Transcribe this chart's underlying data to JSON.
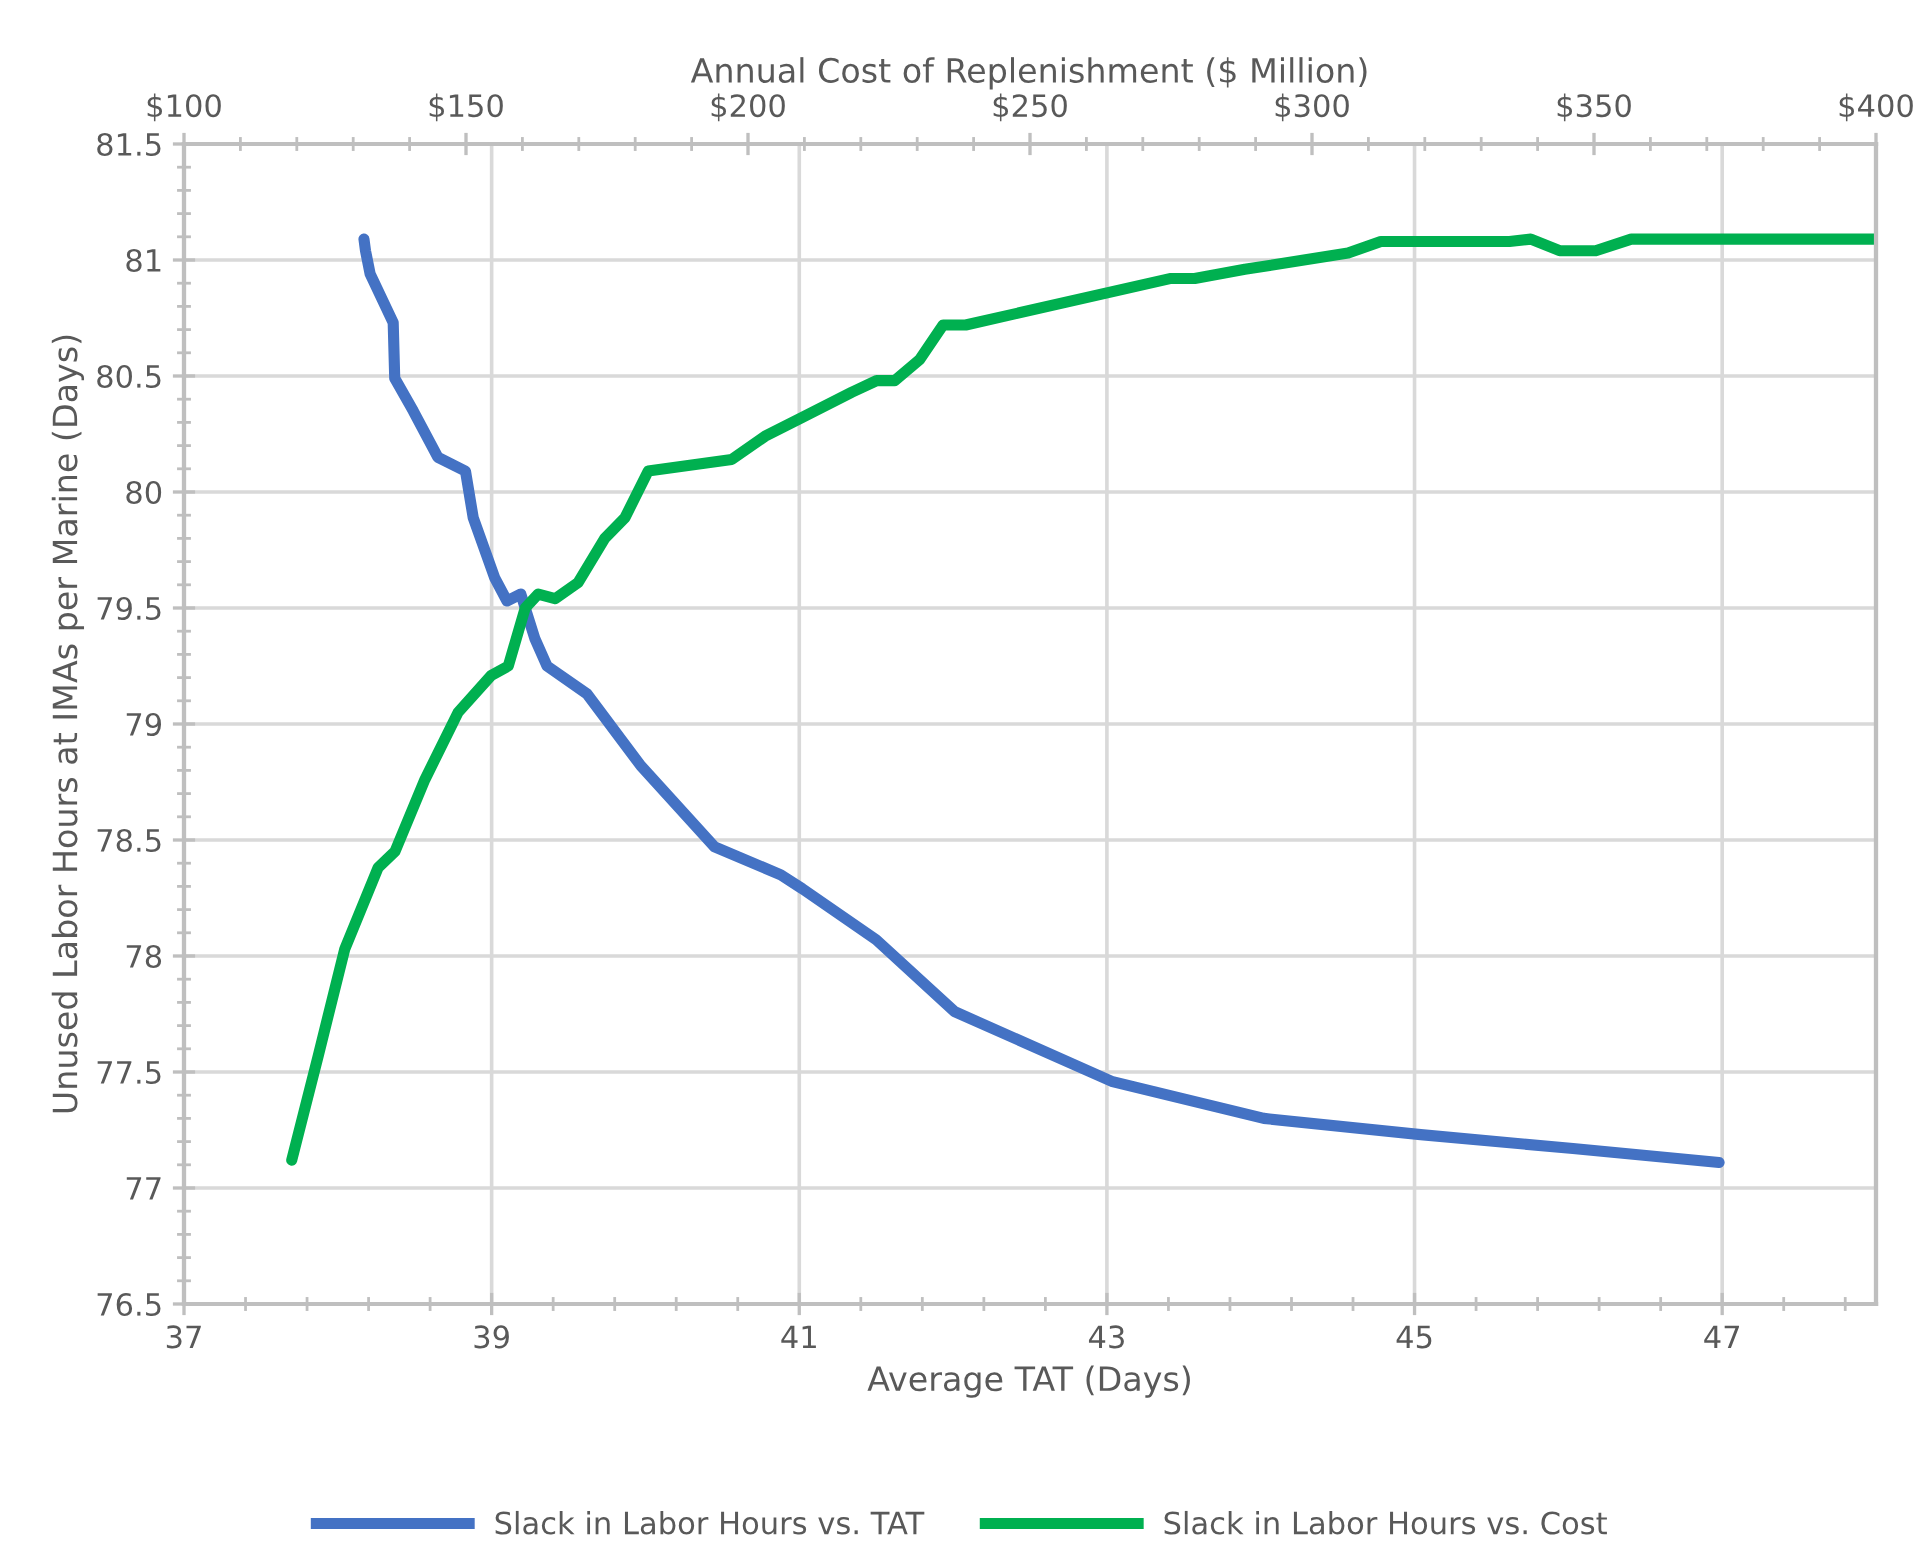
{
  "chart_data": {
    "type": "line",
    "xlabel": "Average TAT (Days)",
    "x2label": "Annual Cost of Replenishment ($ Million)",
    "ylabel": "Unused Labor Hours at IMAs per Marine (Days)",
    "xlim": [
      37,
      48
    ],
    "xticks": [
      37,
      39,
      41,
      43,
      45,
      47
    ],
    "x2lim": [
      100,
      400
    ],
    "x2ticks": [
      {
        "value": 100,
        "label": "$100"
      },
      {
        "value": 150,
        "label": "$150"
      },
      {
        "value": 200,
        "label": "$200"
      },
      {
        "value": 250,
        "label": "$250"
      },
      {
        "value": 300,
        "label": "$300"
      },
      {
        "value": 350,
        "label": "$350"
      },
      {
        "value": 400,
        "label": "$400"
      }
    ],
    "ylim": [
      76.5,
      81.5
    ],
    "yticks": [
      76.5,
      77,
      77.5,
      78,
      78.5,
      79,
      79.5,
      80,
      80.5,
      81,
      81.5
    ],
    "grid": true,
    "legend": "bottom",
    "marker": "none",
    "line_style": "solid",
    "series": [
      {
        "name": "Slack in Labor Hours vs. TAT",
        "color": "#4472c4",
        "x": [
          38.17,
          38.18,
          38.21,
          38.36,
          38.37,
          38.49,
          38.65,
          38.83,
          38.88,
          39.02,
          39.1,
          39.19,
          39.28,
          39.36,
          39.62,
          39.97,
          40.45,
          40.88,
          41.02,
          41.5,
          42.01,
          43.03,
          44.02,
          45.04,
          46.03,
          46.98
        ],
        "values": [
          81.09,
          81.04,
          80.94,
          80.73,
          80.49,
          80.35,
          80.15,
          80.09,
          79.89,
          79.63,
          79.53,
          79.56,
          79.37,
          79.25,
          79.13,
          78.82,
          78.47,
          78.35,
          78.29,
          78.07,
          77.76,
          77.46,
          77.3,
          77.23,
          77.17,
          77.11
        ]
      },
      {
        "name": "Slack in Labor Hours vs. Cost",
        "color": "#00b050",
        "axis": "x2",
        "x": [
          119.1,
          123.8,
          128.5,
          134.4,
          137.4,
          142.7,
          148.6,
          154.5,
          157.5,
          160.5,
          162.8,
          165.8,
          169.9,
          174.6,
          178.2,
          182.3,
          197.1,
          203.0,
          209.5,
          218.4,
          222.8,
          226.0,
          230.4,
          234.6,
          238.6,
          274.8,
          279.2,
          288.1,
          306.4,
          312.2,
          335.0,
          338.8,
          343.9,
          350.3,
          356.6,
          399.6
        ],
        "values": [
          77.12,
          77.57,
          78.03,
          78.38,
          78.45,
          78.76,
          79.05,
          79.21,
          79.25,
          79.5,
          79.56,
          79.54,
          79.61,
          79.8,
          79.89,
          80.09,
          80.14,
          80.24,
          80.32,
          80.43,
          80.48,
          80.48,
          80.57,
          80.72,
          80.72,
          80.92,
          80.92,
          80.96,
          81.03,
          81.08,
          81.08,
          81.09,
          81.04,
          81.04,
          81.09,
          81.09
        ]
      }
    ]
  }
}
